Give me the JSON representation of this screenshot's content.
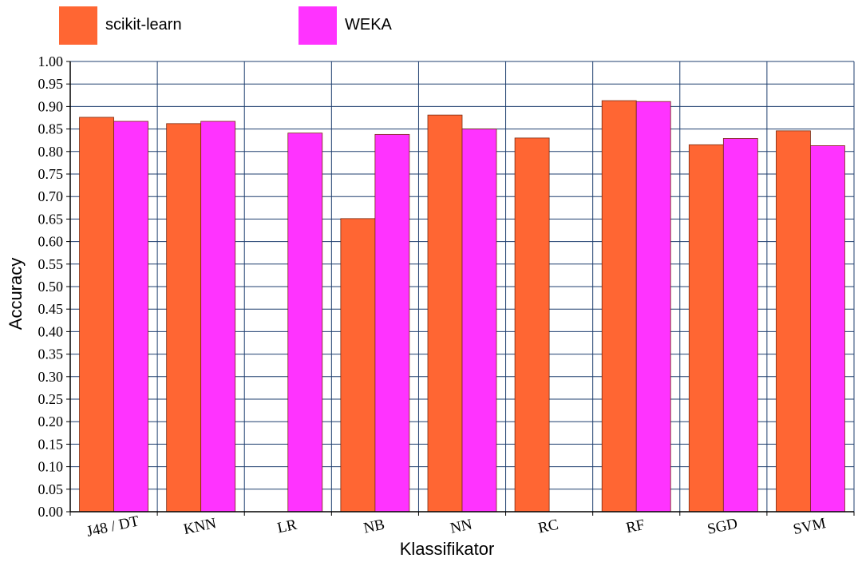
{
  "colors": {
    "scikit": "#ff6633",
    "weka": "#ff33ff",
    "grid": "#1f3f6f",
    "bar_stroke": "#7a2a10"
  },
  "chart_data": {
    "type": "bar",
    "xlabel": "Klassifikator",
    "ylabel": "Accuracy",
    "ylim": [
      0,
      1.0
    ],
    "yticks": [
      "0.00",
      "0.05",
      "0.10",
      "0.15",
      "0.20",
      "0.25",
      "0.30",
      "0.35",
      "0.40",
      "0.45",
      "0.50",
      "0.55",
      "0.60",
      "0.65",
      "0.70",
      "0.75",
      "0.80",
      "0.85",
      "0.90",
      "0.95",
      "1.00"
    ],
    "categories": [
      "J48 / DT",
      "KNN",
      "LR",
      "NB",
      "NN",
      "RC",
      "RF",
      "SGD",
      "SVM"
    ],
    "series": [
      {
        "name": "scikit-learn",
        "values": [
          0.876,
          0.862,
          null,
          0.651,
          0.881,
          0.83,
          0.913,
          0.815,
          0.846
        ]
      },
      {
        "name": "WEKA",
        "values": [
          0.867,
          0.867,
          0.841,
          0.838,
          0.85,
          null,
          0.911,
          0.829,
          0.813
        ]
      }
    ],
    "grid": true,
    "legend_position": "top"
  }
}
